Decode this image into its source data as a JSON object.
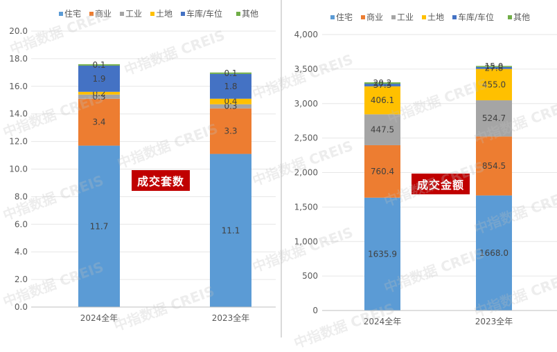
{
  "watermark": "中指数据 CREIS",
  "legend_colors": [
    "#5b9bd5",
    "#ed7d31",
    "#a5a5a5",
    "#ffc000",
    "#4472c4",
    "#70ad47"
  ],
  "chart_data": [
    {
      "type": "bar",
      "stacked": true,
      "tag": "成交套数",
      "categories": [
        "2024全年",
        "2023全年"
      ],
      "ylim": [
        0,
        20
      ],
      "yticks": [
        "0.0",
        "2.0",
        "4.0",
        "6.0",
        "8.0",
        "10.0",
        "12.0",
        "14.0",
        "16.0",
        "18.0",
        "20.0"
      ],
      "grid": true,
      "legend": "top",
      "series": [
        {
          "name": "住宅",
          "color": "#5b9bd5",
          "values": [
            11.7,
            11.1
          ],
          "labels": [
            "11.7",
            "11.1"
          ]
        },
        {
          "name": "商业",
          "color": "#ed7d31",
          "values": [
            3.4,
            3.3
          ],
          "labels": [
            "3.4",
            "3.3"
          ]
        },
        {
          "name": "工业",
          "color": "#a5a5a5",
          "values": [
            0.3,
            0.3
          ],
          "labels": [
            "0.3",
            "0.3"
          ]
        },
        {
          "name": "土地",
          "color": "#ffc000",
          "values": [
            0.2,
            0.4
          ],
          "labels": [
            "0.2",
            "0.4"
          ]
        },
        {
          "name": "车库/车位",
          "color": "#4472c4",
          "values": [
            1.9,
            1.8
          ],
          "labels": [
            "1.9",
            "1.8"
          ]
        },
        {
          "name": "其他",
          "color": "#70ad47",
          "values": [
            0.1,
            0.1
          ],
          "labels": [
            "0.1",
            "0.1"
          ]
        }
      ]
    },
    {
      "type": "bar",
      "stacked": true,
      "tag": "成交金额",
      "categories": [
        "2024全年",
        "2023全年"
      ],
      "ylim": [
        0,
        4000
      ],
      "yticks": [
        "0",
        "500",
        "1,000",
        "1,500",
        "2,000",
        "2,500",
        "3,000",
        "3,500",
        "4,000"
      ],
      "grid": true,
      "legend": "top",
      "series": [
        {
          "name": "住宅",
          "color": "#5b9bd5",
          "values": [
            1635.9,
            1668.0
          ],
          "labels": [
            "1635.9",
            "1668.0"
          ]
        },
        {
          "name": "商业",
          "color": "#ed7d31",
          "values": [
            760.4,
            854.5
          ],
          "labels": [
            "760.4",
            "854.5"
          ]
        },
        {
          "name": "工业",
          "color": "#a5a5a5",
          "values": [
            447.5,
            524.7
          ],
          "labels": [
            "447.5",
            "524.7"
          ]
        },
        {
          "name": "土地",
          "color": "#ffc000",
          "values": [
            406.1,
            455.0
          ],
          "labels": [
            "406.1",
            "455.0"
          ]
        },
        {
          "name": "车库/车位",
          "color": "#4472c4",
          "values": [
            37.3,
            27.8
          ],
          "labels": [
            "37.3",
            "27.8"
          ]
        },
        {
          "name": "其他",
          "color": "#70ad47",
          "values": [
            20.2,
            15.0
          ],
          "labels": [
            "20.2",
            "15.0"
          ]
        }
      ]
    }
  ]
}
